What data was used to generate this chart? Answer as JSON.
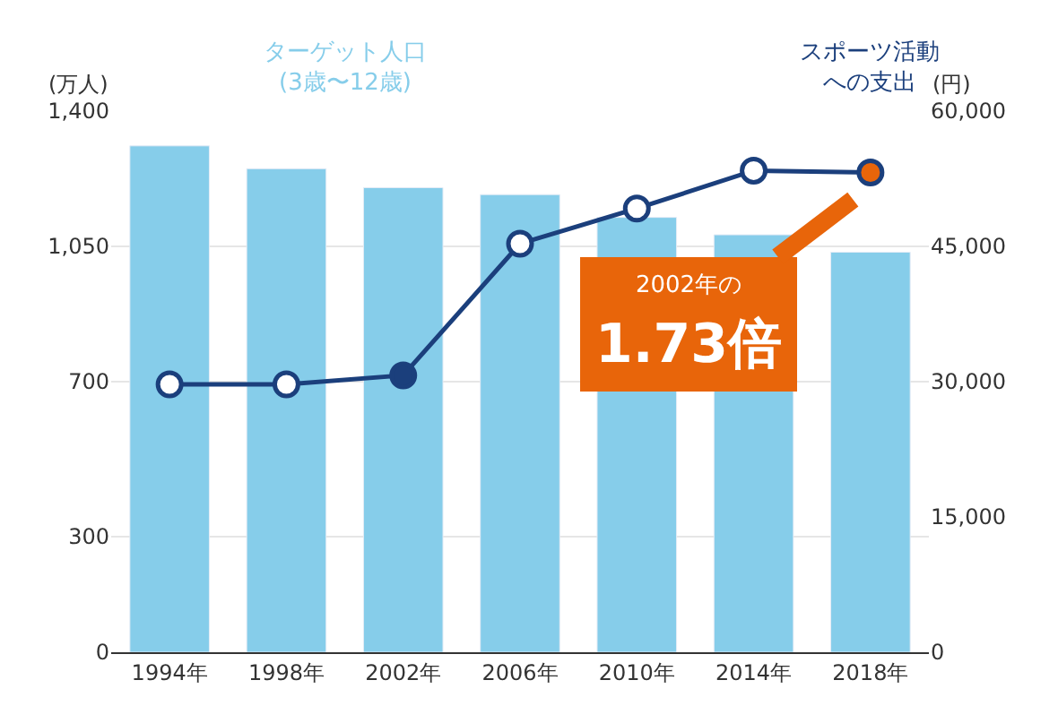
{
  "chart_data": {
    "type": "bar",
    "ylabel": "(万人)",
    "y2label": "(円)",
    "categories": [
      "1994年",
      "1998年",
      "2002年",
      "2006年",
      "2010年",
      "2014年",
      "2018年"
    ],
    "series": [
      {
        "name": "ターゲット人口\n(3歳〜12歳)",
        "color": "#86cdea",
        "values": [
          1310,
          1251,
          1202,
          1184,
          1125,
          1080,
          1035
        ]
      },
      {
        "name": "スポーツ活動への支出",
        "type": "line",
        "axis": "y2",
        "color": "#1b3f7c",
        "marker": "circle",
        "colors": [
          "#ffffff",
          "#ffffff",
          "#1b3f7c",
          "#ffffff",
          "#ffffff",
          "#ffffff",
          "#e8650a"
        ],
        "values": [
          29700,
          29700,
          30700,
          45300,
          49200,
          53400,
          53200
        ]
      }
    ],
    "ylim": [
      0,
      1400
    ],
    "yticks": [
      0,
      300,
      700,
      {
        "value": 1050,
        "label": "1,050"
      },
      {
        "value": 1400,
        "label": "1,400"
      }
    ],
    "y2lim": [
      0,
      60000
    ],
    "y2ticks": [
      0,
      {
        "value": 15000,
        "label": "15,000"
      },
      {
        "value": 30000,
        "label": "30,000"
      },
      {
        "value": 45000,
        "label": "45,000"
      },
      {
        "value": 60000,
        "label": "60,000"
      }
    ],
    "grid": "y",
    "annotations": [
      "2002年の\n1.73倍"
    ]
  }
}
